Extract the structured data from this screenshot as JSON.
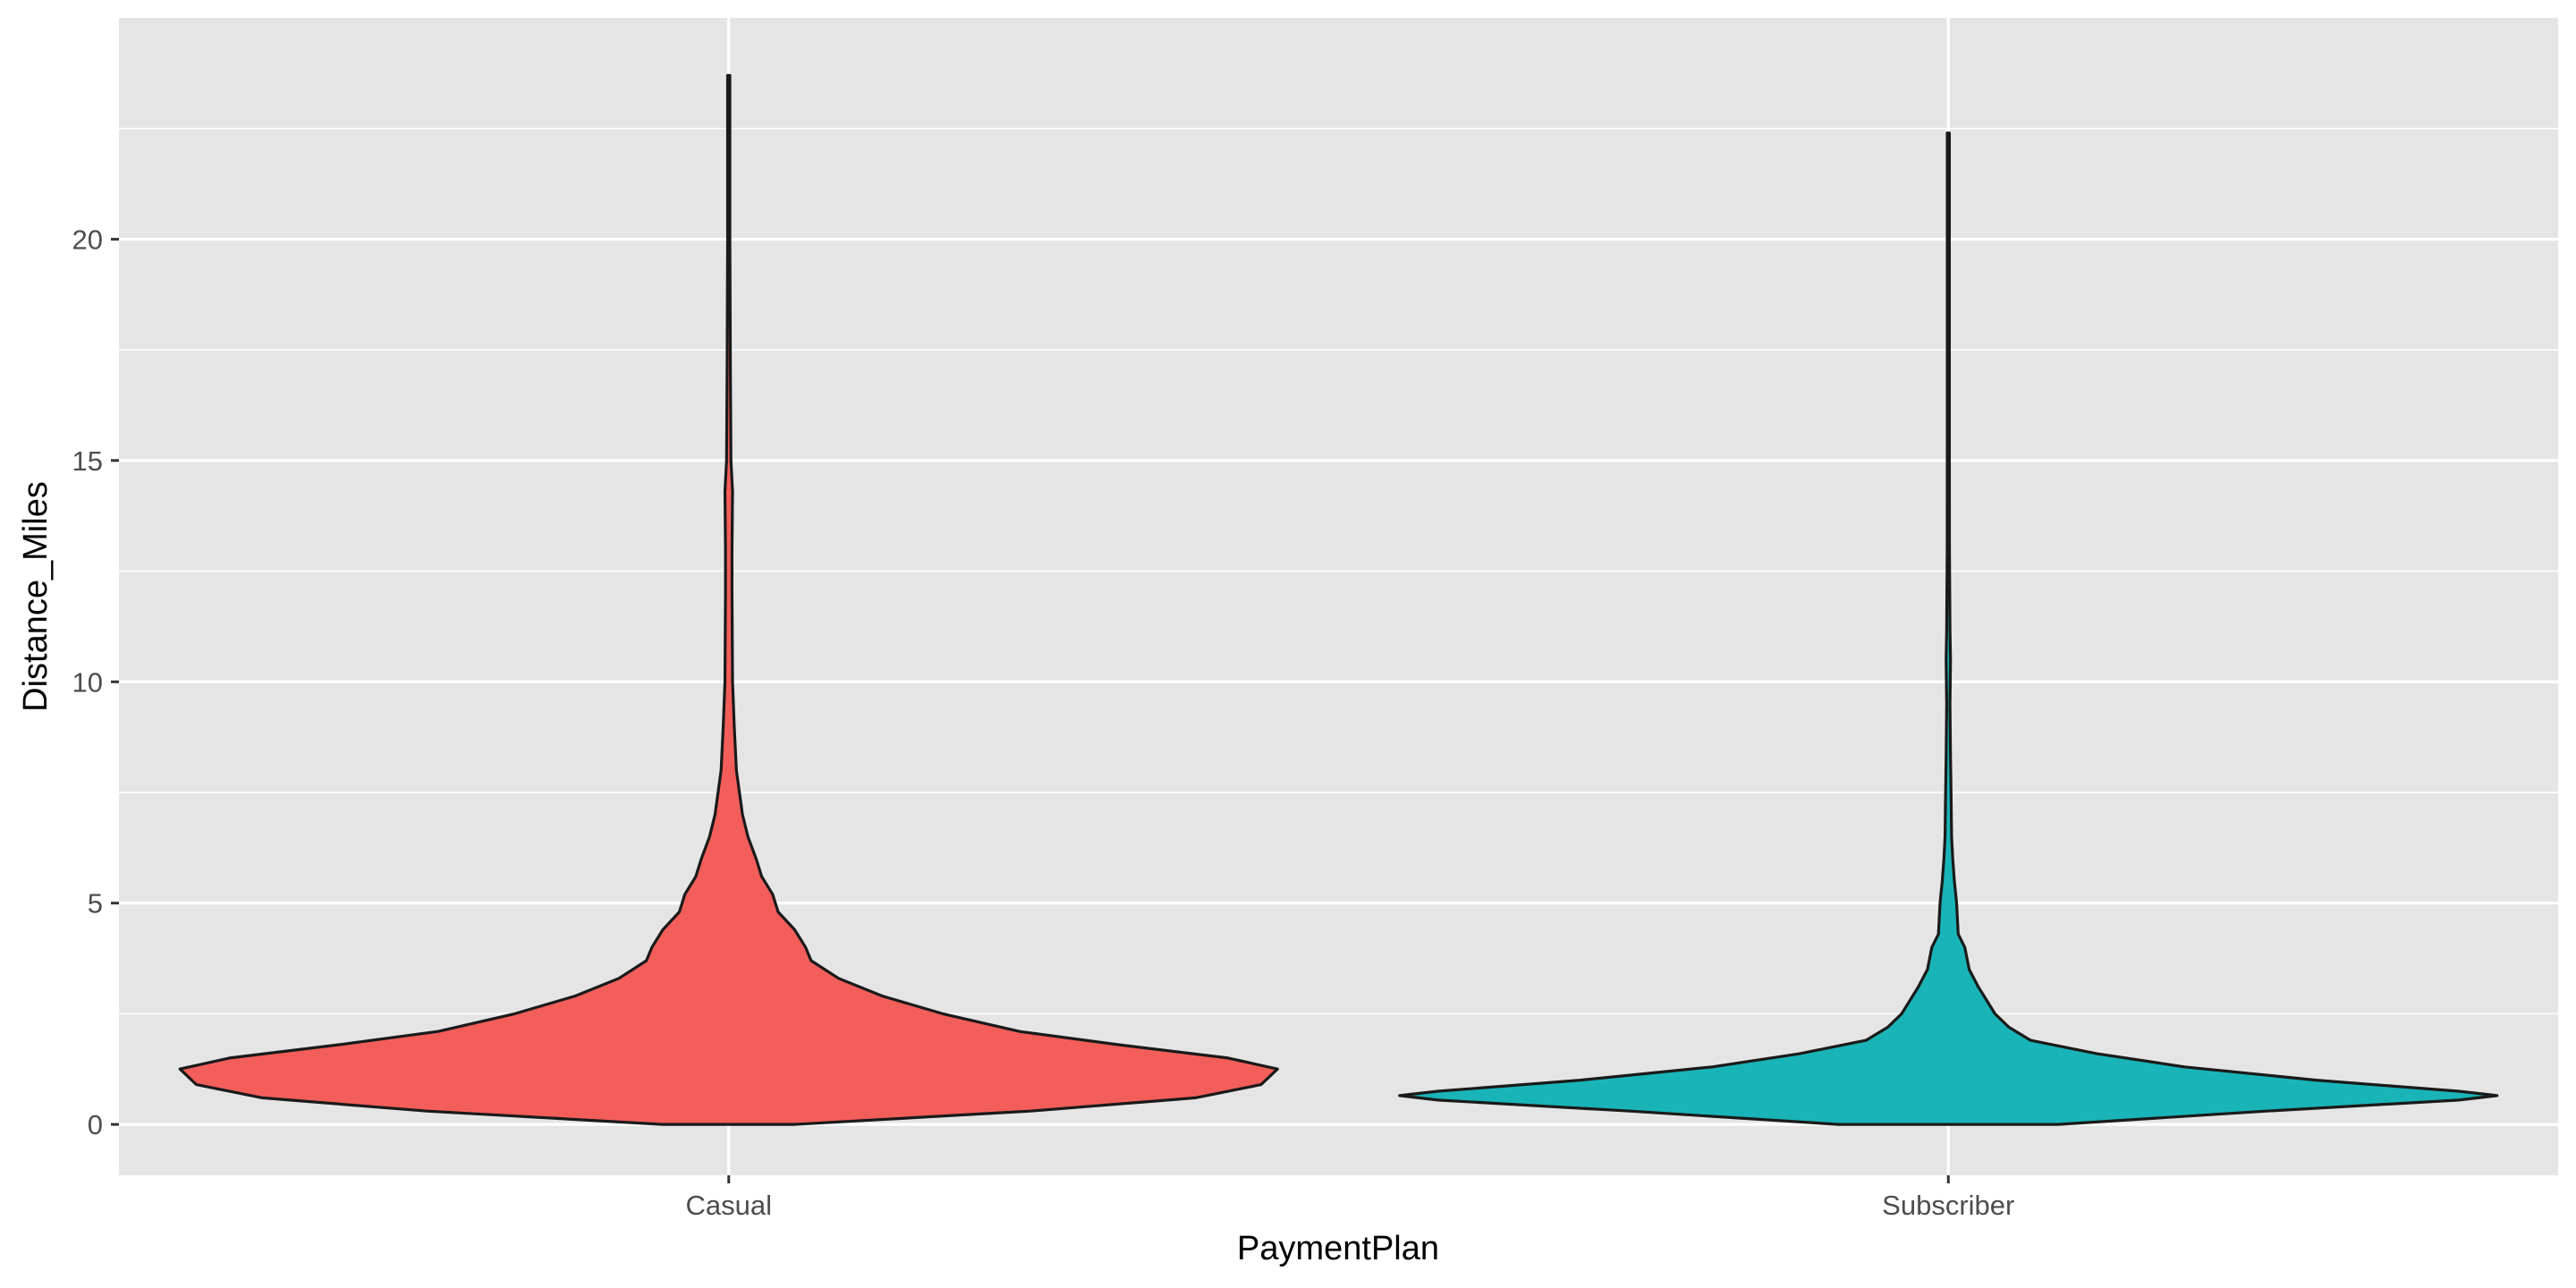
{
  "chart_data": {
    "type": "violin",
    "title": "",
    "xlabel": "PaymentPlan",
    "ylabel": "Distance_Miles",
    "ylim": [
      -1.15,
      25.0
    ],
    "yticks": [
      0,
      5,
      10,
      15,
      20
    ],
    "ytick_labels": [
      "0",
      "5",
      "10",
      "15",
      "20"
    ],
    "grid": true,
    "legend": "none",
    "panel_background": "#e5e5e5",
    "grid_color": "#ffffff",
    "outline_color": "#1a1a1a",
    "categories": [
      "Casual",
      "Subscriber"
    ],
    "series": [
      {
        "category": "Casual",
        "color": "#f35e5a",
        "min": 0,
        "max": 23.7,
        "density_profile": [
          [
            0.0,
            0.12
          ],
          [
            0.3,
            0.55
          ],
          [
            0.6,
            0.85
          ],
          [
            0.9,
            0.97
          ],
          [
            1.25,
            1.0
          ],
          [
            1.5,
            0.91
          ],
          [
            1.8,
            0.71
          ],
          [
            2.1,
            0.53
          ],
          [
            2.5,
            0.39
          ],
          [
            2.9,
            0.28
          ],
          [
            3.3,
            0.2
          ],
          [
            3.7,
            0.15
          ],
          [
            4.0,
            0.14
          ],
          [
            4.4,
            0.12
          ],
          [
            4.8,
            0.09
          ],
          [
            5.2,
            0.08
          ],
          [
            5.6,
            0.06
          ],
          [
            6.0,
            0.05
          ],
          [
            6.5,
            0.035
          ],
          [
            7.0,
            0.025
          ],
          [
            8.0,
            0.014
          ],
          [
            9.0,
            0.01
          ],
          [
            10.0,
            0.007
          ],
          [
            12.0,
            0.006
          ],
          [
            13.0,
            0.006
          ],
          [
            14.3,
            0.007
          ],
          [
            15.0,
            0.004
          ],
          [
            17.0,
            0.003
          ],
          [
            20.0,
            0.002
          ],
          [
            23.7,
            0.001
          ]
        ]
      },
      {
        "category": "Subscriber",
        "color": "#19b4b7",
        "min": 0,
        "max": 22.4,
        "density_profile": [
          [
            0.0,
            0.2
          ],
          [
            0.3,
            0.58
          ],
          [
            0.55,
            0.93
          ],
          [
            0.65,
            1.0
          ],
          [
            0.75,
            0.93
          ],
          [
            1.0,
            0.67
          ],
          [
            1.3,
            0.43
          ],
          [
            1.6,
            0.27
          ],
          [
            1.9,
            0.15
          ],
          [
            2.2,
            0.11
          ],
          [
            2.5,
            0.085
          ],
          [
            2.8,
            0.07
          ],
          [
            3.1,
            0.055
          ],
          [
            3.5,
            0.038
          ],
          [
            4.0,
            0.03
          ],
          [
            4.3,
            0.018
          ],
          [
            5.0,
            0.015
          ],
          [
            5.5,
            0.011
          ],
          [
            6.0,
            0.008
          ],
          [
            6.5,
            0.006
          ],
          [
            7.5,
            0.005
          ],
          [
            8.3,
            0.004
          ],
          [
            9.5,
            0.003
          ],
          [
            10.5,
            0.004
          ],
          [
            11.2,
            0.003
          ],
          [
            13.0,
            0.002
          ],
          [
            16.0,
            0.0015
          ],
          [
            20.0,
            0.001
          ],
          [
            22.4,
            0.001
          ]
        ]
      }
    ]
  }
}
